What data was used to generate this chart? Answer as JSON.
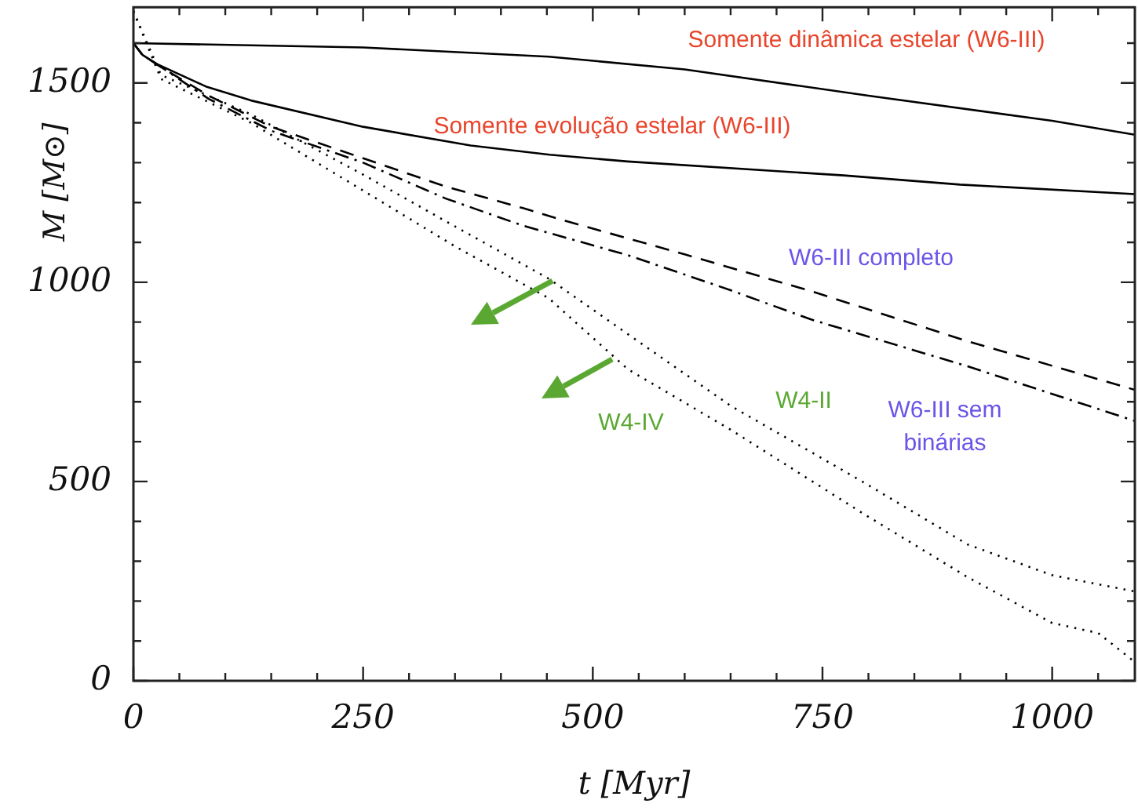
{
  "chart_data": {
    "type": "line",
    "xlabel": "t [Myr]",
    "ylabel": "M [M⊙]",
    "xlim": [
      0,
      1090
    ],
    "ylim": [
      0,
      1690
    ],
    "xticks": [
      0,
      {
        "value": 50,
        "label": null
      },
      {
        "value": 100,
        "label": null
      },
      {
        "value": 150,
        "label": null
      },
      {
        "value": 200,
        "label": null
      },
      250,
      {
        "value": 300,
        "label": null
      },
      {
        "value": 350,
        "label": null
      },
      {
        "value": 400,
        "label": null
      },
      {
        "value": 450,
        "label": null
      },
      500,
      {
        "value": 550,
        "label": null
      },
      {
        "value": 600,
        "label": null
      },
      {
        "value": 650,
        "label": null
      },
      {
        "value": 700,
        "label": null
      },
      750,
      {
        "value": 800,
        "label": null
      },
      {
        "value": 850,
        "label": null
      },
      {
        "value": 900,
        "label": null
      },
      {
        "value": 950,
        "label": null
      },
      1000,
      {
        "value": 1050,
        "label": null
      }
    ],
    "yticks": [
      0,
      {
        "value": 100,
        "label": null
      },
      {
        "value": 200,
        "label": null
      },
      {
        "value": 300,
        "label": null
      },
      {
        "value": 400,
        "label": null
      },
      500,
      {
        "value": 600,
        "label": null
      },
      {
        "value": 700,
        "label": null
      },
      {
        "value": 800,
        "label": null
      },
      {
        "value": 900,
        "label": null
      },
      1000,
      {
        "value": 1100,
        "label": null
      },
      {
        "value": 1200,
        "label": null
      },
      {
        "value": 1300,
        "label": null
      },
      {
        "value": 1400,
        "label": null
      },
      1500,
      {
        "value": 1600,
        "label": null
      }
    ],
    "grid": false,
    "legend": false,
    "marker": "none",
    "series": [
      {
        "name": "Somente dinâmica estelar (W6-III)",
        "color": "#000000",
        "line_style": "solid",
        "x": [
          0,
          250,
          452,
          600,
          800,
          1000,
          1090
        ],
        "values": [
          1600,
          1589,
          1566,
          1534,
          1468,
          1405,
          1370
        ]
      },
      {
        "name": "Somente evolução estelar (W6-III)",
        "color": "#000000",
        "line_style": "solid",
        "x": [
          0,
          10,
          26,
          80,
          128,
          250,
          367,
          453,
          538,
          773,
          900,
          1090
        ],
        "values": [
          1600,
          1570,
          1547,
          1490,
          1456,
          1390,
          1343,
          1320,
          1303,
          1268,
          1245,
          1221
        ]
      },
      {
        "name": "W6-III completo",
        "color": "#000000",
        "line_style": "dashed",
        "x": [
          0,
          10,
          30,
          82,
          150,
          250,
          340,
          424,
          470,
          600,
          737,
          908,
          1090
        ],
        "values": [
          1600,
          1570,
          1540,
          1468,
          1390,
          1311,
          1240,
          1186,
          1154,
          1070,
          978,
          852,
          730
        ]
      },
      {
        "name": "W6-III sem binárias",
        "color": "#000000",
        "line_style": "dashdot",
        "x": [
          0,
          10,
          30,
          82,
          150,
          250,
          340,
          424,
          538,
          650,
          737,
          908,
          1090
        ],
        "values": [
          1600,
          1570,
          1540,
          1460,
          1380,
          1300,
          1210,
          1142,
          1068,
          980,
          907,
          789,
          652
        ]
      },
      {
        "name": "W4-II",
        "color": "#000000",
        "line_style": "dotted",
        "x": [
          0,
          30,
          128,
          250,
          350,
          452,
          538,
          650,
          794,
          908,
          1000,
          1090
        ],
        "values": [
          1680,
          1520,
          1421,
          1270,
          1140,
          1009,
          870,
          690,
          499,
          342,
          265,
          224
        ]
      },
      {
        "name": "W4-IV",
        "color": "#000000",
        "line_style": "dotted",
        "x": [
          0,
          30,
          128,
          250,
          350,
          452,
          538,
          650,
          794,
          908,
          1000,
          1050,
          1090
        ],
        "values": [
          1680,
          1510,
          1400,
          1230,
          1090,
          960,
          782,
          630,
          420,
          260,
          145,
          120,
          47
        ]
      }
    ]
  }
}
